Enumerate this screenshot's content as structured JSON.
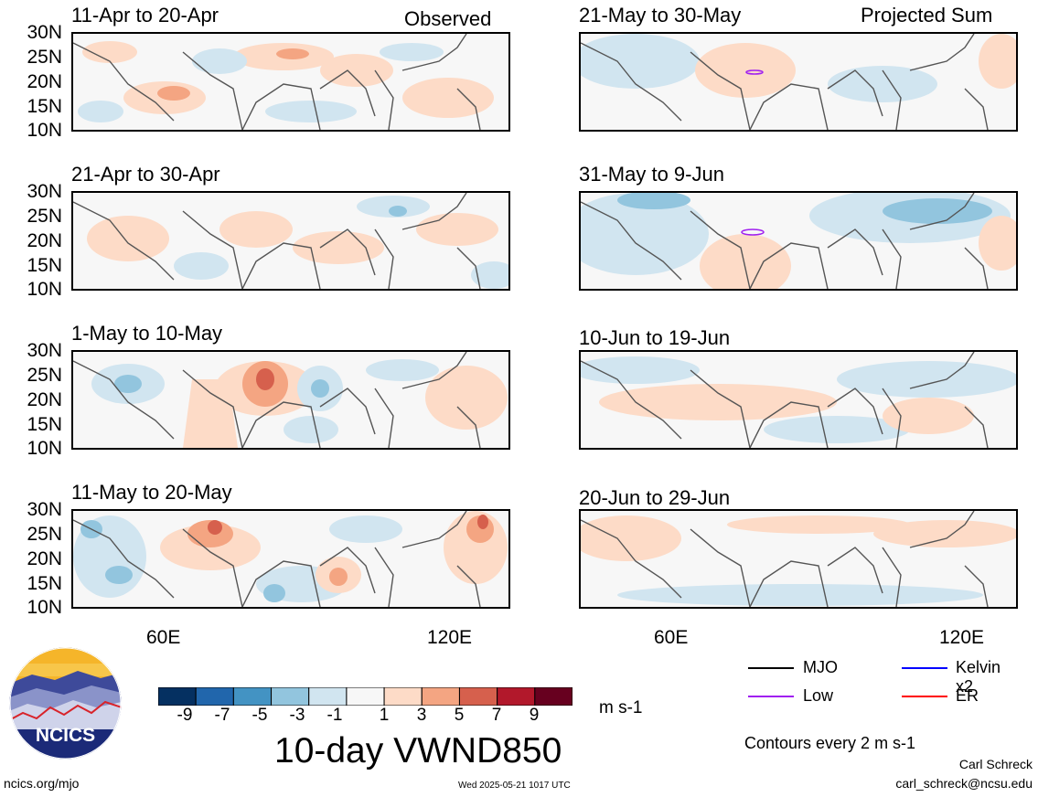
{
  "headers": {
    "left": "Observed",
    "right": "Projected Sum"
  },
  "panels": [
    {
      "title": "11-Apr to 20-Apr"
    },
    {
      "title": "21-Apr to 30-Apr"
    },
    {
      "title": "1-May to 10-May"
    },
    {
      "title": "11-May to 20-May"
    },
    {
      "title": "21-May to 30-May"
    },
    {
      "title": "31-May to 9-Jun"
    },
    {
      "title": "10-Jun to 19-Jun"
    },
    {
      "title": "20-Jun to 29-Jun"
    }
  ],
  "lat_labels": [
    "30N",
    "25N",
    "20N",
    "15N",
    "10N"
  ],
  "lon_labels": [
    "60E",
    "120E"
  ],
  "colorbar": {
    "colors": [
      "#053061",
      "#2166ac",
      "#4393c3",
      "#92c5de",
      "#d1e5f0",
      "#f7f7f7",
      "#fddbc7",
      "#f4a582",
      "#d6604d",
      "#b2182b",
      "#67001f"
    ],
    "ticks": [
      "-9",
      "-7",
      "-5",
      "-3",
      "-1",
      "1",
      "3",
      "5",
      "7",
      "9"
    ],
    "units": "m s-1"
  },
  "main_title": "10-day VWND850",
  "legend": [
    {
      "label": "MJO",
      "color": "#000000"
    },
    {
      "label": "Kelvin x2",
      "color": "#0000ff"
    },
    {
      "label": "Low",
      "color": "#a020f0"
    },
    {
      "label": "ER",
      "color": "#ff0000"
    }
  ],
  "contours_note": "Contours every 2 m s-1",
  "author": "Carl Schreck",
  "email": "carl_schreck@ncsu.edu",
  "website": "ncics.org/mjo",
  "timestamp": "Wed 2025-05-21 1017 UTC",
  "logo_text": "NCICS"
}
